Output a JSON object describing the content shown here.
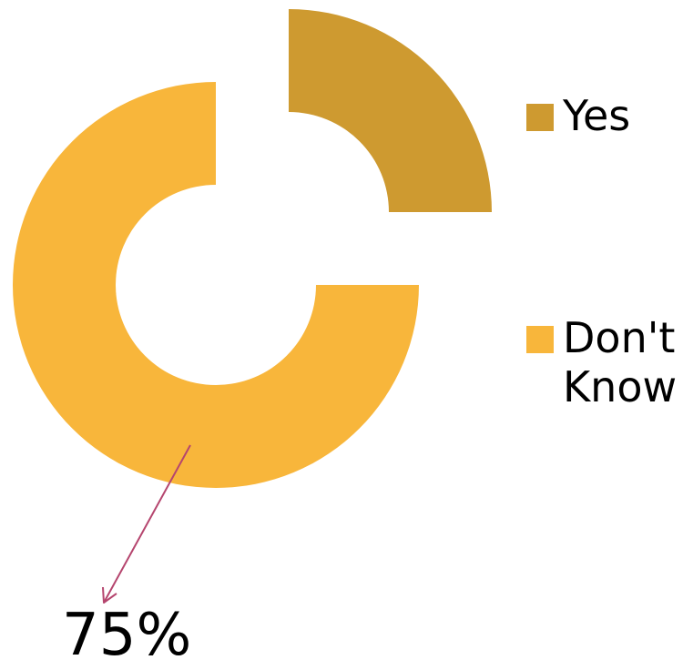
{
  "chart_data": {
    "type": "pie",
    "variant": "donut-exploded",
    "categories": [
      "Yes",
      "Don't Know"
    ],
    "values": [
      25,
      75
    ],
    "colors": [
      "#CE9A30",
      "#F8B63B"
    ],
    "legend": [
      "Yes",
      "Don't Know"
    ],
    "legend_position": "right",
    "annotation": {
      "text": "75%",
      "target": "Don't Know",
      "arrow_color": "#B5456E"
    }
  }
}
